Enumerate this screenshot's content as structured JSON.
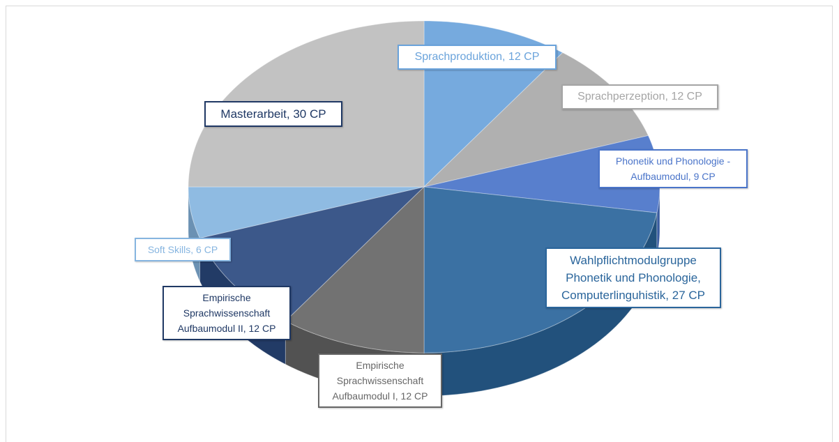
{
  "chart_data": {
    "type": "pie3d",
    "categories": [
      "Sprachproduktion, 12 CP",
      "Sprachperzeption, 12 CP",
      "Phonetik und Phonologie - Aufbaumodul, 9 CP",
      "Wahlpflichtmodulgruppe Phonetik und Phonologie, Computerlinguhistik, 27 CP",
      "Empirische Sprachwissenschaft Aufbaumodul I, 12 CP",
      "Empirische Sprachwissenschaft Aufbaumodul II, 12 CP",
      "Soft Skills, 6 CP",
      "Masterarbeit, 30 CP"
    ],
    "values": [
      12,
      12,
      9,
      27,
      12,
      12,
      6,
      30
    ],
    "colors": [
      "#6aa3db",
      "#a9a9a9",
      "#4a74c9",
      "#2a659b",
      "#666666",
      "#2b4a80",
      "#86b5e0",
      "#bdbdbd"
    ]
  }
}
